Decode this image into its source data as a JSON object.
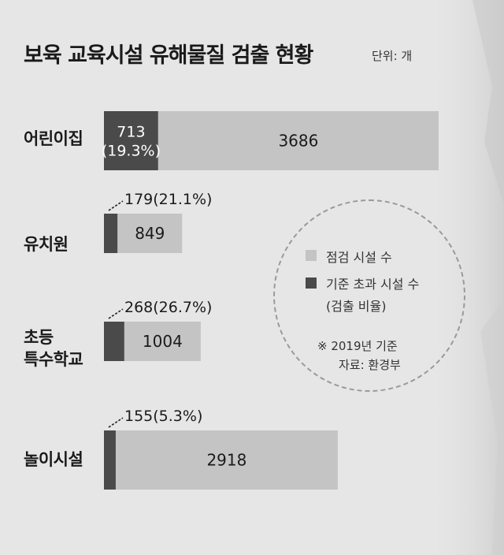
{
  "title": "보육  교육시설 유해물질 검출 현황",
  "unit": "단위: 개",
  "colors": {
    "background": "#e6e6e6",
    "checked": "#c4c4c4",
    "exceeded": "#4a4a4a"
  },
  "legend": {
    "checked_label": "점검 시설 수",
    "exceeded_label_line1": "기준 초과 시설 수",
    "exceeded_label_line2": "(검출 비율)"
  },
  "note": {
    "line1": "※ 2019년 기준",
    "line2": "자료: 환경부"
  },
  "chart_data": {
    "type": "bar",
    "orientation": "horizontal",
    "stacked": true,
    "categories": [
      "어린이집",
      "유치원",
      "초등 특수학교",
      "놀이시설"
    ],
    "category_lines": [
      [
        "어린이집"
      ],
      [
        "유치원"
      ],
      [
        "초등",
        "특수학교"
      ],
      [
        "놀이시설"
      ]
    ],
    "series": [
      {
        "name": "기준 초과 시설 수",
        "values": [
          713,
          179,
          268,
          155
        ],
        "pct": [
          "19.3%",
          "21.1%",
          "26.7%",
          "5.3%"
        ]
      },
      {
        "name": "점검 시설 수",
        "values": [
          3686,
          849,
          1004,
          2918
        ]
      }
    ],
    "exceed_labels": [
      "713",
      "179(21.1%)",
      "268(26.7%)",
      "155(5.3%)"
    ],
    "exceed_pct_label_0": "(19.3%)",
    "checked_labels": [
      "3686",
      "849",
      "1004",
      "2918"
    ]
  }
}
